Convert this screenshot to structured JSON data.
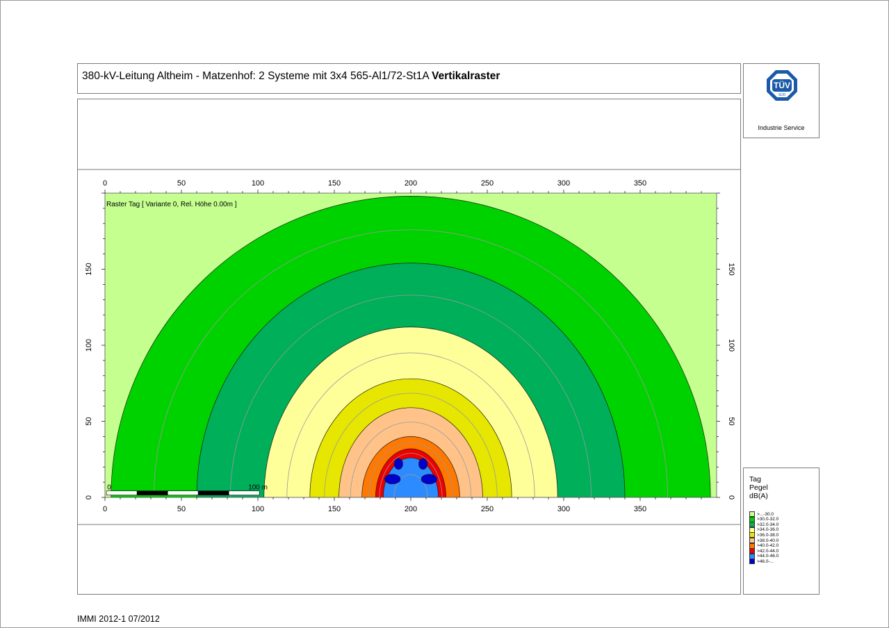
{
  "header": {
    "title_normal": "380-kV-Leitung Altheim - Matzenhof: 2 Systeme mit 3x4 565-Al1/72-St1A",
    "title_bold": "Vertikalraster"
  },
  "logo": {
    "mark_text": "TÜV",
    "sub_text": "SÜD",
    "caption": "Industrie Service",
    "icon": "tuv-sud-octagon-logo"
  },
  "map": {
    "raster_label": "Raster Tag  [ Variante 0, Rel. Höhe  0.00m ]",
    "scale_bar": {
      "start_label": "0",
      "end_label": "100 m",
      "length_m": 100
    }
  },
  "legend": {
    "line1": "Tag",
    "line2": "Pegel",
    "line3": "dB(A)",
    "items": [
      {
        "label": ">...-30.0",
        "color": "#c5ff90"
      },
      {
        "label": ">30.0-32.0",
        "color": "#00d200"
      },
      {
        "label": ">32.0-34.0",
        "color": "#00af5a"
      },
      {
        "label": ">34.0-36.0",
        "color": "#ffff9a"
      },
      {
        "label": ">36.0-38.0",
        "color": "#e6e600"
      },
      {
        "label": ">38.0-40.0",
        "color": "#ffc38a"
      },
      {
        "label": ">40.0-42.0",
        "color": "#ff7800"
      },
      {
        "label": ">42.0-44.0",
        "color": "#ee0000"
      },
      {
        "label": ">44.0-46.0",
        "color": "#2c8cff"
      },
      {
        "label": ">46.0-...",
        "color": "#0000cc"
      }
    ]
  },
  "footer": {
    "text": "IMMI 2012-1  07/2012"
  },
  "chart_data": {
    "type": "heatmap",
    "x_ticks": [
      0,
      50,
      100,
      150,
      200,
      250,
      300,
      350
    ],
    "y_ticks": [
      0,
      50,
      100,
      150
    ],
    "xlim": [
      0,
      400
    ],
    "ylim": [
      0,
      200
    ],
    "source_x": 200,
    "contours": [
      {
        "band": ">30.0-32.0",
        "rx": 196,
        "ry": 198
      },
      {
        "band": ">32.0-34.0",
        "rx": 140,
        "ry": 154
      },
      {
        "band": ">34.0-36.0",
        "rx": 96,
        "ry": 112
      },
      {
        "band": ">36.0-38.0",
        "rx": 66,
        "ry": 78
      },
      {
        "band": ">38.0-40.0",
        "rx": 47,
        "ry": 59
      },
      {
        "band": ">40.0-42.0",
        "rx": 32,
        "ry": 40
      },
      {
        "band": ">42.0-44.0",
        "rx": 23,
        "ry": 32
      },
      {
        "band": ">44.0-46.0",
        "rx": 18,
        "ry": 26
      },
      {
        "band": ">46.0-...",
        "rx": 4,
        "ry": 4
      }
    ]
  }
}
